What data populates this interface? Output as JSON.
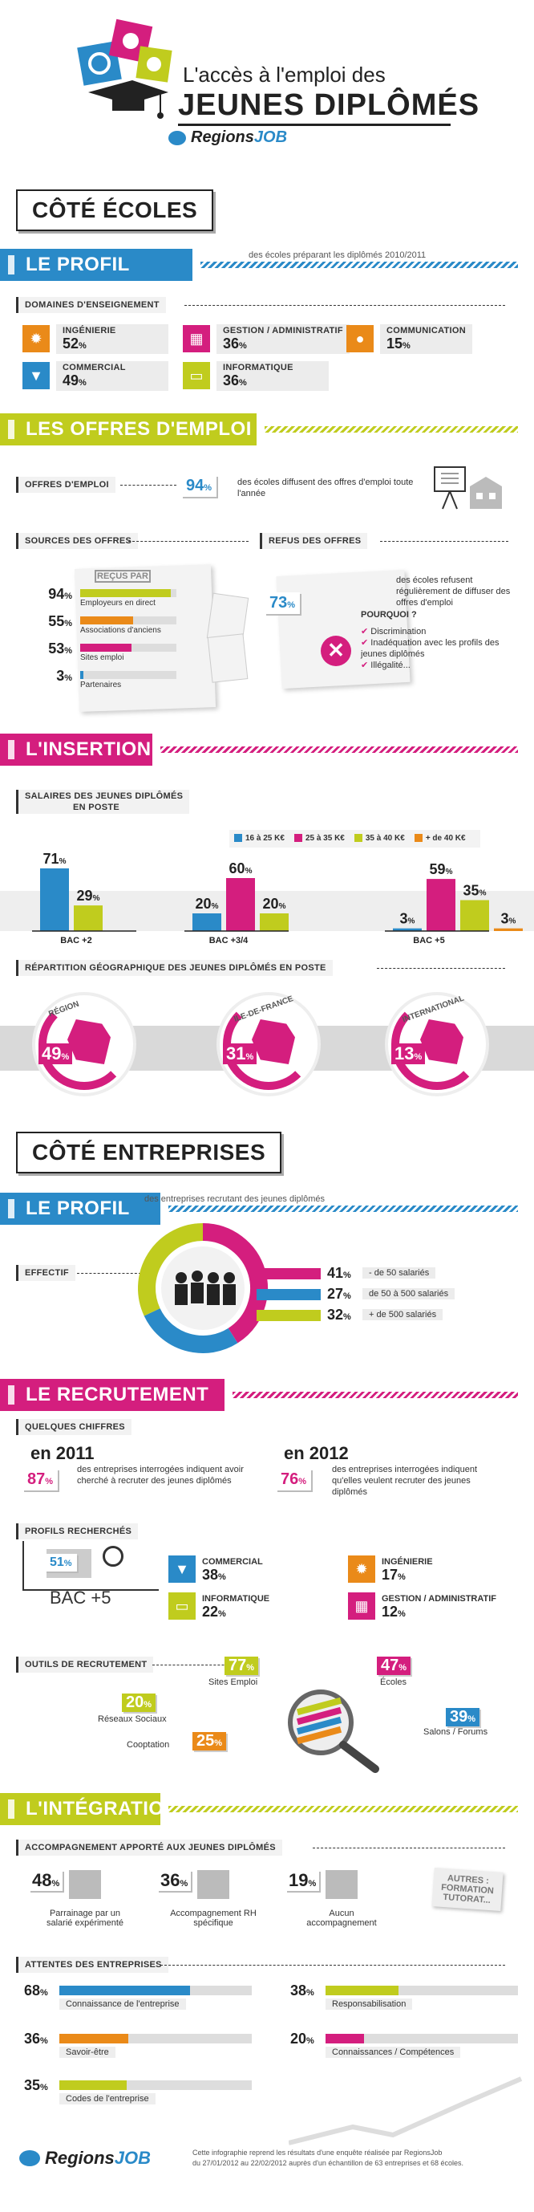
{
  "header": {
    "title_line1": "L'accès à l'emploi des",
    "title_line2": "JEUNES DIPLÔMÉS",
    "logo_left": "Regions",
    "logo_right": "JOB",
    "colors": {
      "blue": "#2a8ac8",
      "pink": "#d41e7e",
      "green": "#c0cc1e",
      "orange": "#ea8a19",
      "gray": "#c9c9c9",
      "dark": "#333333"
    }
  },
  "ecoles": {
    "section_title": "CÔTÉ ÉCOLES",
    "profil": {
      "banner": "LE PROFIL",
      "caption": "des écoles préparant les diplômés 2010/2011",
      "domaines_label": "DOMAINES D'ENSEIGNEMENT",
      "domaines": [
        {
          "name": "INGÉNIERIE",
          "value": "52",
          "unit": "%",
          "icon": "gear-icon",
          "color": "#ea8a19"
        },
        {
          "name": "GESTION / ADMINISTRATIF",
          "value": "36",
          "unit": "%",
          "icon": "calculator-icon",
          "color": "#d41e7e"
        },
        {
          "name": "COMMUNICATION",
          "value": "15",
          "unit": "%",
          "icon": "speech-bubble-icon",
          "color": "#ea8a19"
        },
        {
          "name": "COMMERCIAL",
          "value": "49",
          "unit": "%",
          "icon": "tie-icon",
          "color": "#2a8ac8"
        },
        {
          "name": "INFORMATIQUE",
          "value": "36",
          "unit": "%",
          "icon": "monitor-icon",
          "color": "#c0cc1e"
        }
      ]
    },
    "offres": {
      "banner": "LES OFFRES D'EMPLOI",
      "offres_label": "OFFRES D'EMPLOI",
      "offres_pct": "94",
      "offres_text": "des écoles diffusent des offres d'emploi toute l'année",
      "sources_label": "SOURCES DES OFFRES",
      "recus_par": "REÇUS PAR",
      "sources": [
        {
          "value": "94",
          "name": "Employeurs en direct",
          "color": "#c0cc1e"
        },
        {
          "value": "55",
          "name": "Associations d'anciens",
          "color": "#ea8a19"
        },
        {
          "value": "53",
          "name": "Sites emploi",
          "color": "#d41e7e"
        },
        {
          "value": "3",
          "name": "Partenaires",
          "color": "#2a8ac8"
        }
      ],
      "refus_label": "REFUS DES OFFRES",
      "refus_pct": "73",
      "refus_text": "des écoles refusent régulièrement de diffuser des offres d'emploi",
      "pourquoi": "POURQUOI ?",
      "reasons": [
        "Discrimination",
        "Inadéquation avec les profils des jeunes diplômés",
        "Illégalité..."
      ]
    },
    "insertion": {
      "banner": "L'INSERTION",
      "salaires_label_1": "SALAIRES DES JEUNES DIPLÔMÉS",
      "salaires_label_2": "EN POSTE"
    },
    "repartition": {
      "label": "RÉPARTITION GÉOGRAPHIQUE DES JEUNES DIPLÔMÉS EN POSTE",
      "items": [
        {
          "name": "RÉGION",
          "value": "49",
          "color": "#d41e7e"
        },
        {
          "name": "ILE-DE-FRANCE",
          "value": "31",
          "color": "#d41e7e"
        },
        {
          "name": "INTERNATIONAL",
          "value": "13",
          "color": "#d41e7e"
        }
      ]
    }
  },
  "chart_data": {
    "type": "bar",
    "categories": [
      "BAC +2",
      "BAC +3/4",
      "BAC +5"
    ],
    "series": [
      {
        "name": "16 à 25 K€",
        "color": "#2a8ac8",
        "values": [
          71,
          20,
          3
        ]
      },
      {
        "name": "25 à 35 K€",
        "color": "#d41e7e",
        "values": [
          0,
          60,
          59
        ]
      },
      {
        "name": "35 à 40 K€",
        "color": "#c0cc1e",
        "values": [
          29,
          20,
          35
        ]
      },
      {
        "name": "+ de 40 K€",
        "color": "#ea8a19",
        "values": [
          0,
          0,
          3
        ]
      }
    ],
    "ylim": [
      0,
      100
    ],
    "unit": "%"
  },
  "entreprises": {
    "section_title": "CÔTÉ ENTREPRISES",
    "profil": {
      "banner": "LE PROFIL",
      "caption": "des entreprises recrutant des jeunes diplômés",
      "effectif_label": "EFFECTIF",
      "effectif": [
        {
          "value": "41",
          "name": "- de 50 salariés",
          "color": "#d41e7e"
        },
        {
          "value": "27",
          "name": "de 50 à 500 salariés",
          "color": "#2a8ac8"
        },
        {
          "value": "32",
          "name": "+ de 500 salariés",
          "color": "#c0cc1e"
        }
      ]
    },
    "recrutement": {
      "banner": "LE RECRUTEMENT",
      "chiffres_label": "QUELQUES CHIFFRES",
      "y2011": "en 2011",
      "pct2011": "87",
      "text2011": "des entreprises interrogées indiquent avoir cherché à recruter des jeunes diplômés",
      "y2012": "en 2012",
      "pct2012": "76",
      "text2012": "des entreprises interrogées indiquent qu'elles veulent recruter des jeunes diplômés",
      "profils_label": "PROFILS RECHERCHÉS",
      "bac_pct": "51",
      "bac_label": "BAC +5",
      "profils": [
        {
          "name": "COMMERCIAL",
          "value": "38",
          "icon": "tie-icon",
          "color": "#2a8ac8"
        },
        {
          "name": "INGÉNIERIE",
          "value": "17",
          "icon": "gear-icon",
          "color": "#ea8a19"
        },
        {
          "name": "INFORMATIQUE",
          "value": "22",
          "icon": "monitor-icon",
          "color": "#c0cc1e"
        },
        {
          "name": "GESTION / ADMINISTRATIF",
          "value": "12",
          "icon": "calculator-icon",
          "color": "#d41e7e"
        }
      ],
      "outils_label": "OUTILS DE RECRUTEMENT",
      "outils": [
        {
          "name": "Sites Emploi",
          "value": "77",
          "color": "#c0cc1e"
        },
        {
          "name": "Écoles",
          "value": "47",
          "color": "#d41e7e"
        },
        {
          "name": "Réseaux Sociaux",
          "value": "20",
          "color": "#c0cc1e"
        },
        {
          "name": "Salons / Forums",
          "value": "39",
          "color": "#2a8ac8"
        },
        {
          "name": "Cooptation",
          "value": "25",
          "color": "#ea8a19"
        }
      ]
    },
    "integration": {
      "banner": "L'INTÉGRATION",
      "accomp_label": "ACCOMPAGNEMENT APPORTÉ AUX JEUNES DIPLÔMÉS",
      "accomp": [
        {
          "value": "48",
          "name": "Parrainage par un salarié expérimenté"
        },
        {
          "value": "36",
          "name": "Accompagnement RH spécifique"
        },
        {
          "value": "19",
          "name": "Aucun accompagnement"
        }
      ],
      "autres": "AUTRES : FORMATION TUTORAT...",
      "attentes_label": "ATTENTES DES ENTREPRISES",
      "attentes": [
        {
          "value": "68",
          "name": "Connaissance de l'entreprise",
          "color": "#2a8ac8"
        },
        {
          "value": "38",
          "name": "Responsabilisation",
          "color": "#c0cc1e"
        },
        {
          "value": "36",
          "name": "Savoir-être",
          "color": "#ea8a19"
        },
        {
          "value": "20",
          "name": "Connaissances / Compétences",
          "color": "#d41e7e"
        },
        {
          "value": "35",
          "name": "Codes de l'entreprise",
          "color": "#c0cc1e"
        }
      ]
    }
  },
  "footer": {
    "logo_left": "Regions",
    "logo_right": "JOB",
    "note_line1": "Cette infographie reprend les résultats d'une enquête réalisée par RegionsJob",
    "note_line2": "du 27/01/2012 au 22/02/2012 auprès d'un échantillon de 63 entreprises et 68 écoles."
  }
}
